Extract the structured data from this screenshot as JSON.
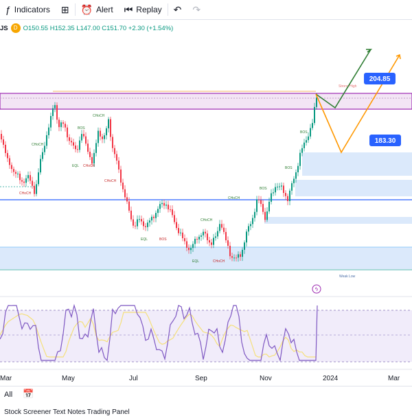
{
  "toolbar": {
    "indicators_label": "Indicators",
    "alert_label": "Alert",
    "replay_label": "Replay",
    "icons": [
      "plus-icon",
      "indicators-icon",
      "layout-icon",
      "alert-icon",
      "replay-icon",
      "undo-icon",
      "redo-icon"
    ]
  },
  "legend": {
    "symbol_fragment": "JS",
    "source_badge": "D",
    "open": "O150.55",
    "high": "H152.35",
    "low": "L147.00",
    "close": "C151.70",
    "change": "+2.30 (+1.54%)"
  },
  "chart_data": {
    "type": "candlestick",
    "x_axis_labels": [
      "Mar",
      "May",
      "Jul",
      "Sep",
      "Nov",
      "2024",
      "Mar"
    ],
    "price_tags": [
      204.85,
      183.3
    ],
    "annotations": [
      "CHoCH",
      "BOS",
      "EQL",
      "Strong High",
      "Weak Low"
    ],
    "scenarios": [
      {
        "name": "bullish path",
        "color": "#2e7d32"
      },
      {
        "name": "pullback path",
        "color": "#ff9800"
      }
    ],
    "colors": {
      "up": "#089981",
      "down": "#f23645",
      "supply_zone": "#e1bee7",
      "demand_zone": "#bbdefb",
      "rsi": "#7e57c2",
      "rsi_ma": "#f7e26b"
    },
    "oscillator": {
      "type": "RSI",
      "range_band": true
    }
  },
  "bottom": {
    "all_label": "All",
    "tabs_text": "Stock Screener   Text Notes   Trading Panel"
  }
}
